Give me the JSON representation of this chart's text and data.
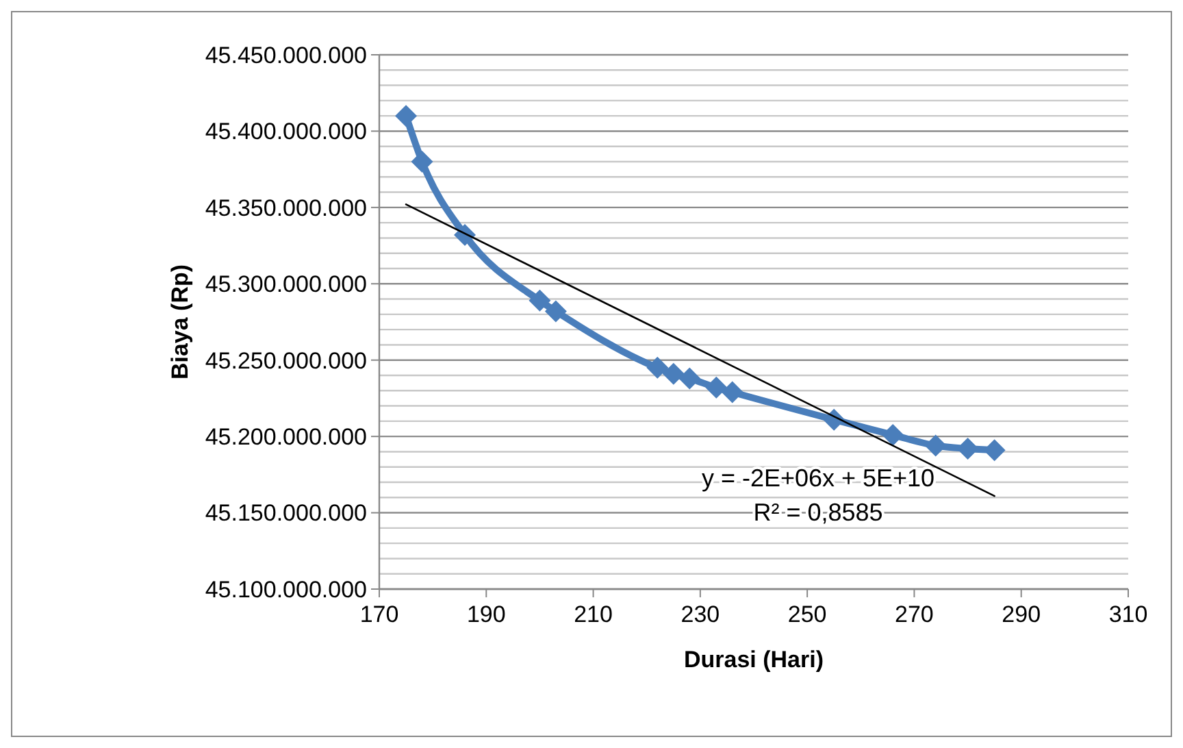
{
  "chart_data": {
    "type": "line",
    "xlabel": "Durasi (Hari)",
    "ylabel": "Biaya (Rp)",
    "xlim": [
      170,
      310
    ],
    "xticks": [
      170,
      190,
      210,
      230,
      250,
      270,
      290,
      310
    ],
    "ylim": [
      45100000000,
      45450000000
    ],
    "yticks": [
      {
        "value": 45100000000,
        "label": "45.100.000.000"
      },
      {
        "value": 45110000000,
        "label": null
      },
      {
        "value": 45120000000,
        "label": null
      },
      {
        "value": 45130000000,
        "label": null
      },
      {
        "value": 45140000000,
        "label": null
      },
      {
        "value": 45150000000,
        "label": "45.150.000.000"
      },
      {
        "value": 45160000000,
        "label": null
      },
      {
        "value": 45170000000,
        "label": null
      },
      {
        "value": 45180000000,
        "label": null
      },
      {
        "value": 45190000000,
        "label": null
      },
      {
        "value": 45200000000,
        "label": "45.200.000.000"
      },
      {
        "value": 45210000000,
        "label": null
      },
      {
        "value": 45220000000,
        "label": null
      },
      {
        "value": 45230000000,
        "label": null
      },
      {
        "value": 45240000000,
        "label": null
      },
      {
        "value": 45250000000,
        "label": "45.250.000.000"
      },
      {
        "value": 45260000000,
        "label": null
      },
      {
        "value": 45270000000,
        "label": null
      },
      {
        "value": 45280000000,
        "label": null
      },
      {
        "value": 45290000000,
        "label": null
      },
      {
        "value": 45300000000,
        "label": "45.300.000.000"
      },
      {
        "value": 45310000000,
        "label": null
      },
      {
        "value": 45320000000,
        "label": null
      },
      {
        "value": 45330000000,
        "label": null
      },
      {
        "value": 45340000000,
        "label": null
      },
      {
        "value": 45350000000,
        "label": "45.350.000.000"
      },
      {
        "value": 45360000000,
        "label": null
      },
      {
        "value": 45370000000,
        "label": null
      },
      {
        "value": 45380000000,
        "label": null
      },
      {
        "value": 45390000000,
        "label": null
      },
      {
        "value": 45400000000,
        "label": "45.400.000.000"
      },
      {
        "value": 45410000000,
        "label": null
      },
      {
        "value": 45420000000,
        "label": null
      },
      {
        "value": 45430000000,
        "label": null
      },
      {
        "value": 45440000000,
        "label": null
      },
      {
        "value": 45450000000,
        "label": "45.450.000.000"
      }
    ],
    "grid": "y",
    "series": [
      {
        "color": "#4a7ebb",
        "marker": "diamond",
        "x": [
          175,
          178,
          186,
          200,
          203,
          222,
          225,
          228,
          233,
          236,
          255,
          266,
          274,
          280,
          285
        ],
        "values": [
          45410000000,
          45380000000,
          45332000000,
          45289000000,
          45282000000,
          45245000000,
          45241000000,
          45238000000,
          45232000000,
          45229000000,
          45211000000,
          45201000000,
          45194000000,
          45192000000,
          45191000000
        ]
      },
      {
        "type": "line",
        "color": "#000000",
        "marker": "none",
        "x": [
          175,
          285
        ],
        "values": [
          45352000000,
          45161000000
        ]
      }
    ],
    "annotations": [
      "y = -2E+06x + 5E+10",
      "R² = 0,8585"
    ]
  }
}
